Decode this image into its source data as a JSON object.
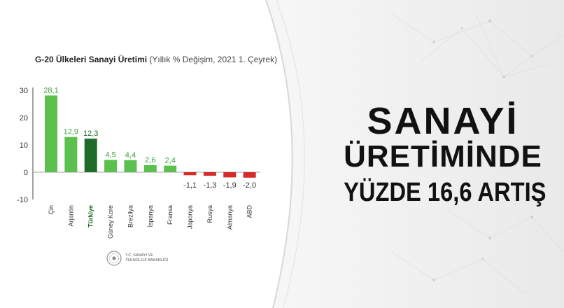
{
  "headline": {
    "line1": "SANAYİ",
    "line2": "ÜRETİMİNDE",
    "line3": "YÜZDE 16,6 ARTIŞ"
  },
  "chart_data": {
    "type": "bar",
    "title": "G-20 Ülkeleri Sanayi Üretimi",
    "subtitle": "(Yıllık % Değişim, 2021 1. Çeyrek)",
    "categories": [
      "Çin",
      "Arjantin",
      "Türkiye",
      "Güney Kore",
      "Brezilya",
      "İspanya",
      "Fransa",
      "Japonya",
      "Rusya",
      "Almanya",
      "ABD"
    ],
    "values": [
      28.1,
      12.9,
      12.3,
      4.5,
      4.4,
      2.6,
      2.4,
      -1.1,
      -1.3,
      -1.9,
      -2.0
    ],
    "value_labels": [
      "28,1",
      "12,9",
      "12,3",
      "4,5",
      "4,4",
      "2,6",
      "2,4",
      "-1,1",
      "-1,3",
      "-1,9",
      "-2,0"
    ],
    "y_ticks": [
      30,
      20,
      10,
      0,
      -10
    ],
    "ylim": [
      -10,
      30
    ],
    "highlight_category": "Türkiye",
    "colors": {
      "positive": "#5cc04f",
      "highlight": "#1f6b2a",
      "negative": "#d42a2a",
      "positive_label": "#3aa33a",
      "negative_label": "#333333"
    }
  },
  "logo": {
    "icon": "ministry-seal-icon",
    "text": "T.C. SANAYİ VE TEKNOLOJİ BAKANLIĞI"
  }
}
